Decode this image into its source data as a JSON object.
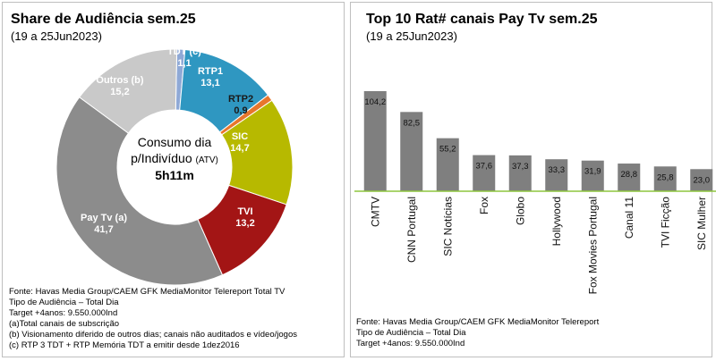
{
  "left": {
    "title": "Share de Audiência sem.25",
    "subtitle": "(19 a 25Jun2023)",
    "center": {
      "line1": "Consumo dia",
      "line2": "p/Indivíduo",
      "line2_small": "(ATV)",
      "line3": "5h11m"
    },
    "notes": [
      "Fonte: Havas Media Group/CAEM GFK MediaMonitor Telereport Total TV",
      "Tipo de Audiência – Total Dia",
      "Target +4anos: 9.550.000Ind",
      "(a)Total canais de subscrição",
      "(b) Visionamento diferido de outros dias; canais não auditados e vídeo/jogos",
      "(c) RTP 3 TDT + RTP Memória TDT a emitir desde 1dez2016"
    ]
  },
  "right": {
    "title": "Top 10 Rat# canais Pay Tv sem.25",
    "subtitle": "(19 a 25Jun2023)",
    "notes": [
      "Fonte: Havas Media Group/CAEM GFK MediaMonitor Telereport",
      "Tipo de Audiência – Total Dia",
      "Target +4anos: 9.550.000Ind"
    ]
  },
  "chart_data": [
    {
      "type": "pie",
      "variant": "donut",
      "title": "Share de Audiência sem.25",
      "subtitle": "(19 a 25Jun2023)",
      "categories": [
        "TDT (c)",
        "RTP1",
        "RTP2",
        "SIC",
        "TVI",
        "Pay Tv (a)",
        "Outros (b)"
      ],
      "values": [
        1.1,
        13.1,
        0.9,
        14.7,
        13.2,
        41.7,
        15.2
      ],
      "labels": [
        "1,1",
        "13,1",
        "0,9",
        "14,7",
        "13,2",
        "41,7",
        "15,2"
      ],
      "colors": [
        "#8fa9d6",
        "#2f97c1",
        "#e8762c",
        "#b7b900",
        "#a31515",
        "#8c8c8c",
        "#c9c9c9"
      ],
      "label_colors": [
        "#ffffff",
        "#ffffff",
        "#1a1a1a",
        "#ffffff",
        "#ffffff",
        "#ffffff",
        "#ffffff"
      ],
      "center_text": [
        "Consumo dia",
        "p/Indivíduo (ATV)",
        "5h11m"
      ]
    },
    {
      "type": "bar",
      "title": "Top 10 Rat# canais Pay Tv sem.25",
      "subtitle": "(19 a 25Jun2023)",
      "categories": [
        "CMTV",
        "CNN Portugal",
        "SIC Notícias",
        "Fox",
        "Globo",
        "Hollywood",
        "Fox Movies Portugal",
        "Canal 11",
        "TVI Ficção",
        "SIC Mulher"
      ],
      "values": [
        104.2,
        82.5,
        55.2,
        37.6,
        37.3,
        33.3,
        31.9,
        28.8,
        25.8,
        23.0
      ],
      "labels": [
        "104,2",
        "82,5",
        "55,2",
        "37,6",
        "37,3",
        "33,3",
        "31,9",
        "28,8",
        "25,8",
        "23,0"
      ],
      "bar_color": "#7f7f7f",
      "baseline_color": "#8dc63f",
      "ylim": [
        0,
        110
      ],
      "grid": false
    }
  ]
}
